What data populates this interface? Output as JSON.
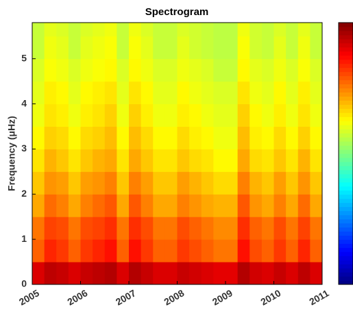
{
  "chart_data": {
    "type": "heatmap",
    "title": "Spectrogram",
    "y_label": "Frequency (μHz)",
    "x": [
      2005.125,
      2005.375,
      2005.625,
      2005.875,
      2006.125,
      2006.375,
      2006.625,
      2006.875,
      2007.125,
      2007.375,
      2007.625,
      2007.875,
      2008.125,
      2008.375,
      2008.625,
      2008.875,
      2009.125,
      2009.375,
      2009.625,
      2009.875,
      2010.125,
      2010.375,
      2010.625,
      2010.875
    ],
    "y": [
      0.25,
      0.75,
      1.25,
      1.75,
      2.25,
      2.75,
      3.25,
      3.75,
      4.25,
      4.75,
      5.25,
      5.75
    ],
    "z": [
      [
        0.91,
        0.94,
        0.93,
        0.91,
        0.93,
        0.94,
        0.95,
        0.91,
        0.95,
        0.93,
        0.91,
        0.91,
        0.93,
        0.92,
        0.91,
        0.9,
        0.9,
        0.95,
        0.92,
        0.91,
        0.93,
        0.91,
        0.94,
        0.91
      ],
      [
        0.78,
        0.84,
        0.82,
        0.78,
        0.82,
        0.84,
        0.86,
        0.78,
        0.86,
        0.82,
        0.78,
        0.78,
        0.82,
        0.8,
        0.78,
        0.76,
        0.76,
        0.86,
        0.8,
        0.78,
        0.82,
        0.78,
        0.84,
        0.78
      ],
      [
        0.76,
        0.81,
        0.8,
        0.76,
        0.8,
        0.81,
        0.83,
        0.76,
        0.83,
        0.8,
        0.76,
        0.76,
        0.8,
        0.78,
        0.76,
        0.74,
        0.74,
        0.83,
        0.78,
        0.76,
        0.8,
        0.76,
        0.81,
        0.76
      ],
      [
        0.71,
        0.77,
        0.75,
        0.71,
        0.75,
        0.77,
        0.79,
        0.71,
        0.79,
        0.75,
        0.71,
        0.71,
        0.75,
        0.73,
        0.71,
        0.7,
        0.7,
        0.79,
        0.73,
        0.71,
        0.75,
        0.71,
        0.77,
        0.71
      ],
      [
        0.68,
        0.73,
        0.72,
        0.68,
        0.72,
        0.73,
        0.75,
        0.68,
        0.75,
        0.72,
        0.68,
        0.68,
        0.72,
        0.7,
        0.68,
        0.66,
        0.66,
        0.75,
        0.7,
        0.68,
        0.72,
        0.68,
        0.73,
        0.68
      ],
      [
        0.65,
        0.7,
        0.68,
        0.65,
        0.68,
        0.7,
        0.71,
        0.65,
        0.71,
        0.68,
        0.65,
        0.65,
        0.68,
        0.66,
        0.65,
        0.63,
        0.63,
        0.71,
        0.66,
        0.65,
        0.68,
        0.65,
        0.7,
        0.65
      ],
      [
        0.63,
        0.67,
        0.66,
        0.63,
        0.66,
        0.67,
        0.69,
        0.63,
        0.69,
        0.66,
        0.63,
        0.63,
        0.66,
        0.64,
        0.63,
        0.61,
        0.61,
        0.69,
        0.64,
        0.63,
        0.66,
        0.63,
        0.67,
        0.63
      ],
      [
        0.61,
        0.65,
        0.64,
        0.61,
        0.64,
        0.65,
        0.67,
        0.61,
        0.67,
        0.64,
        0.61,
        0.61,
        0.64,
        0.63,
        0.61,
        0.6,
        0.6,
        0.67,
        0.63,
        0.61,
        0.64,
        0.61,
        0.65,
        0.61
      ],
      [
        0.6,
        0.64,
        0.63,
        0.6,
        0.63,
        0.64,
        0.65,
        0.6,
        0.65,
        0.63,
        0.6,
        0.6,
        0.63,
        0.61,
        0.6,
        0.59,
        0.59,
        0.65,
        0.61,
        0.6,
        0.63,
        0.6,
        0.64,
        0.6
      ],
      [
        0.59,
        0.62,
        0.61,
        0.59,
        0.61,
        0.62,
        0.63,
        0.59,
        0.63,
        0.61,
        0.59,
        0.59,
        0.61,
        0.6,
        0.59,
        0.57,
        0.57,
        0.63,
        0.6,
        0.59,
        0.61,
        0.59,
        0.62,
        0.59
      ],
      [
        0.57,
        0.61,
        0.6,
        0.57,
        0.6,
        0.61,
        0.62,
        0.57,
        0.62,
        0.6,
        0.57,
        0.57,
        0.6,
        0.58,
        0.57,
        0.56,
        0.56,
        0.62,
        0.58,
        0.57,
        0.6,
        0.57,
        0.61,
        0.57
      ],
      [
        0.57,
        0.6,
        0.59,
        0.57,
        0.59,
        0.6,
        0.61,
        0.57,
        0.61,
        0.59,
        0.57,
        0.57,
        0.59,
        0.58,
        0.57,
        0.56,
        0.56,
        0.61,
        0.58,
        0.57,
        0.59,
        0.57,
        0.6,
        0.57
      ]
    ],
    "colormap": "jet",
    "clim": [
      0,
      1
    ],
    "xlim": [
      2005,
      2011
    ],
    "xticks": [
      2005,
      2006,
      2007,
      2008,
      2009,
      2010,
      2011
    ],
    "ylim": [
      0,
      5.8
    ],
    "yticks": [
      0,
      1,
      2,
      3,
      4,
      5
    ]
  }
}
